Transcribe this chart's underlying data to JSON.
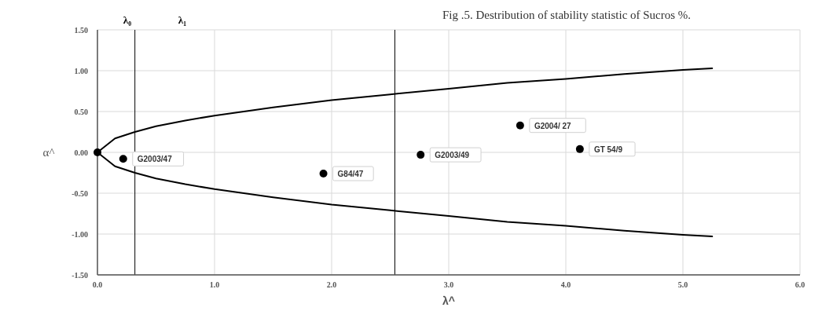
{
  "chart_data": {
    "type": "scatter",
    "title": "Fig .5. Destribution of stability statistic of Sucros %.",
    "xlabel": "λ^",
    "ylabel": "α^",
    "xlim": [
      0,
      6
    ],
    "ylim": [
      -1.5,
      1.5
    ],
    "xticks": [
      {
        "value": 0,
        "label": "0.0"
      },
      {
        "value": 1,
        "label": "1.0"
      },
      {
        "value": 2,
        "label": "2.0"
      },
      {
        "value": 3,
        "label": "3.0"
      },
      {
        "value": 4,
        "label": "4.0"
      },
      {
        "value": 5,
        "label": "5.0"
      },
      {
        "value": 6,
        "label": "6.0"
      }
    ],
    "yticks": [
      {
        "value": -1.5,
        "label": "-1.50"
      },
      {
        "value": -1,
        "label": "-1.00"
      },
      {
        "value": -0.5,
        "label": "-0.50"
      },
      {
        "value": 0,
        "label": "0.00"
      },
      {
        "value": 0.5,
        "label": "0.50"
      },
      {
        "value": 1,
        "label": "1.00"
      },
      {
        "value": 1.5,
        "label": "1.50"
      }
    ],
    "grid": true,
    "marker": "circle",
    "series": [
      {
        "type": "line",
        "color": "#000000",
        "marker": "none",
        "x": [
          0,
          0.15,
          0.32,
          0.5,
          0.75,
          1,
          1.5,
          2,
          2.5,
          3,
          3.5,
          4,
          4.5,
          5,
          5.25
        ],
        "values": [
          0,
          0.17,
          0.25,
          0.32,
          0.39,
          0.45,
          0.55,
          0.64,
          0.71,
          0.78,
          0.85,
          0.9,
          0.96,
          1.01,
          1.03
        ]
      },
      {
        "type": "line",
        "color": "#000000",
        "marker": "none",
        "x": [
          0,
          0.15,
          0.32,
          0.5,
          0.75,
          1,
          1.5,
          2,
          2.5,
          3,
          3.5,
          4,
          4.5,
          5,
          5.25
        ],
        "values": [
          0,
          -0.17,
          -0.25,
          -0.32,
          -0.39,
          -0.45,
          -0.55,
          -0.64,
          -0.71,
          -0.78,
          -0.85,
          -0.9,
          -0.96,
          -1.01,
          -1.03
        ]
      },
      {
        "color": "#000000",
        "x": [
          0
        ],
        "values": [
          0
        ]
      },
      {
        "color": "#000000",
        "x": [
          0.22,
          1.93,
          2.76,
          3.61,
          4.12
        ],
        "values": [
          -0.08,
          -0.26,
          -0.03,
          0.33,
          0.04
        ]
      }
    ],
    "ref_lines": [
      {
        "axis": "x",
        "value": 0.32,
        "color": "#000000"
      },
      {
        "axis": "x",
        "value": 2.54,
        "color": "#000000"
      }
    ],
    "annotations": [
      "λ₀",
      "λ₁",
      {
        "text": "G2003/47",
        "x": 0.22,
        "y": -0.08
      },
      {
        "text": "G84/47",
        "x": 1.93,
        "y": -0.26
      },
      {
        "text": "G2003/49",
        "x": 2.76,
        "y": -0.03
      },
      {
        "text": "G2004/ 27",
        "x": 3.61,
        "y": 0.33
      },
      {
        "text": "GT 54/9",
        "x": 4.12,
        "y": 0.04
      }
    ]
  }
}
